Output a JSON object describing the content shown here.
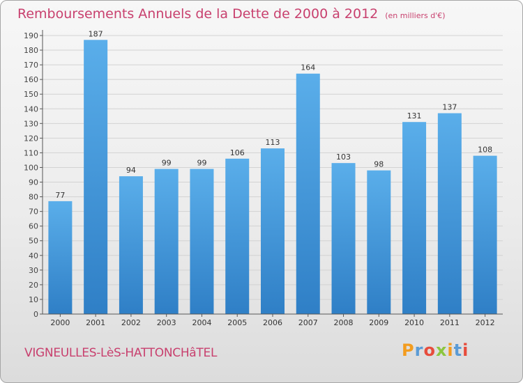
{
  "page": {
    "title": "Remboursements Annuels de la Dette de 2000 à 2012",
    "subtitle": "(en milliers d'€)",
    "footer_name": "VIGNEULLES-LèS-HATTONCHâTEL",
    "logo": {
      "letters": [
        "P",
        "r",
        "o",
        "x",
        "i",
        "t",
        "i"
      ],
      "colors": [
        "#f39c1e",
        "#5b9bd5",
        "#e74c3c",
        "#8cc63f",
        "#f39c1e",
        "#5b9bd5",
        "#e74c3c"
      ]
    }
  },
  "chart_data": {
    "type": "bar",
    "title": "Remboursements Annuels de la Dette de 2000 à 2012",
    "subtitle": "(en milliers d'€)",
    "categories": [
      "2000",
      "2001",
      "2002",
      "2003",
      "2004",
      "2005",
      "2006",
      "2007",
      "2008",
      "2009",
      "2010",
      "2011",
      "2012"
    ],
    "values": [
      77,
      187,
      94,
      99,
      99,
      106,
      113,
      164,
      103,
      98,
      131,
      137,
      108
    ],
    "ylim": [
      0,
      190
    ],
    "yticks": [
      0,
      10,
      20,
      30,
      40,
      50,
      60,
      70,
      80,
      90,
      100,
      110,
      120,
      130,
      140,
      150,
      160,
      170,
      180,
      190
    ],
    "grid": true,
    "bar_color": "#3a8fd6",
    "bar_color_light": "#5aaeea",
    "data_labels": true
  }
}
